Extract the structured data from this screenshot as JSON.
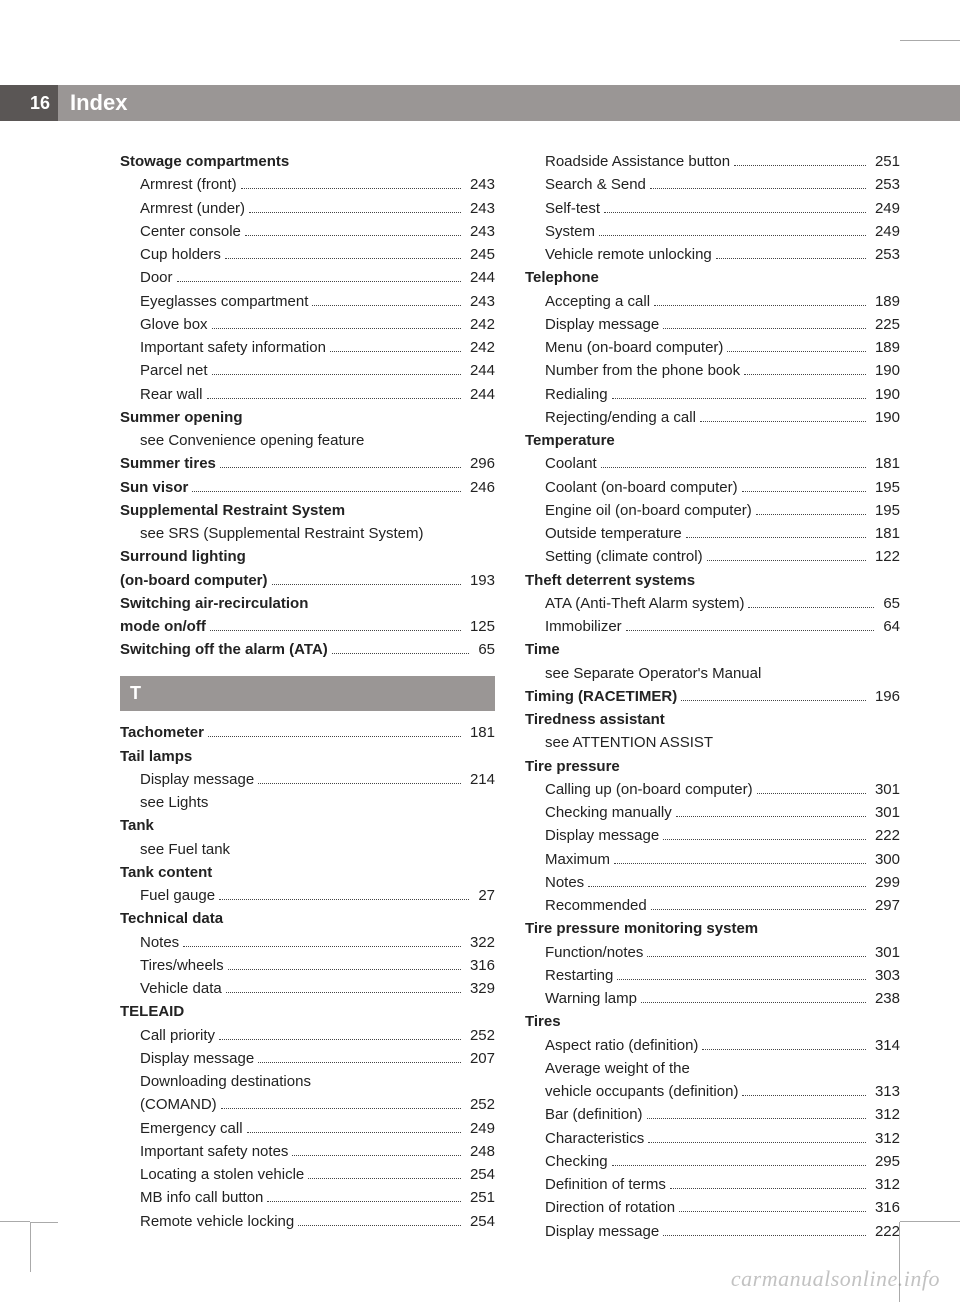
{
  "header": {
    "page_number": "16",
    "title": "Index"
  },
  "section_letter": "T",
  "watermark": "carmanualsonline.info",
  "colors": {
    "header_bar": "#9a9695",
    "page_num_bg": "#5a5655",
    "text": "#222222",
    "bg": "#ffffff"
  },
  "left_col": [
    {
      "type": "heading",
      "text": "Stowage compartments"
    },
    {
      "type": "sub",
      "text": "Armrest (front)",
      "page": "243"
    },
    {
      "type": "sub",
      "text": "Armrest (under)",
      "page": "243"
    },
    {
      "type": "sub",
      "text": "Center console",
      "page": "243"
    },
    {
      "type": "sub",
      "text": "Cup holders",
      "page": "245"
    },
    {
      "type": "sub",
      "text": "Door",
      "page": "244"
    },
    {
      "type": "sub",
      "text": "Eyeglasses compartment",
      "page": "243"
    },
    {
      "type": "sub",
      "text": "Glove box",
      "page": "242"
    },
    {
      "type": "sub",
      "text": "Important safety information",
      "page": "242"
    },
    {
      "type": "sub",
      "text": "Parcel net",
      "page": "244"
    },
    {
      "type": "sub",
      "text": "Rear wall",
      "page": "244"
    },
    {
      "type": "heading",
      "text": "Summer opening"
    },
    {
      "type": "see",
      "text": "see Convenience opening feature"
    },
    {
      "type": "heading_pg",
      "text": "Summer tires",
      "page": "296"
    },
    {
      "type": "heading_pg",
      "text": "Sun visor",
      "page": "246"
    },
    {
      "type": "heading",
      "text": "Supplemental Restraint System"
    },
    {
      "type": "see",
      "text": "see SRS (Supplemental Restraint System)"
    },
    {
      "type": "heading_pg",
      "text": "Surround lighting (on-board computer)",
      "page": "193"
    },
    {
      "type": "heading_pg",
      "text": "Switching air-recirculation mode on/off",
      "page": "125"
    },
    {
      "type": "heading_pg",
      "text": "Switching off the alarm (ATA)",
      "page": "65"
    },
    {
      "type": "letter"
    },
    {
      "type": "heading_pg",
      "text": "Tachometer",
      "page": "181"
    },
    {
      "type": "heading",
      "text": "Tail lamps"
    },
    {
      "type": "sub",
      "text": "Display message",
      "page": "214"
    },
    {
      "type": "see",
      "text": "see Lights"
    },
    {
      "type": "heading",
      "text": "Tank"
    },
    {
      "type": "see",
      "text": "see Fuel tank"
    },
    {
      "type": "heading",
      "text": "Tank content"
    },
    {
      "type": "sub",
      "text": "Fuel gauge",
      "page": "27"
    },
    {
      "type": "heading",
      "text": "Technical data"
    },
    {
      "type": "sub",
      "text": "Notes",
      "page": "322"
    },
    {
      "type": "sub",
      "text": "Tires/wheels",
      "page": "316"
    },
    {
      "type": "sub",
      "text": "Vehicle data",
      "page": "329"
    },
    {
      "type": "heading",
      "text": "TELEAID"
    },
    {
      "type": "sub",
      "text": "Call priority",
      "page": "252"
    },
    {
      "type": "sub",
      "text": "Display message",
      "page": "207"
    },
    {
      "type": "sub_multi",
      "text": "Downloading destinations (COMAND)",
      "page": "252"
    },
    {
      "type": "sub",
      "text": "Emergency call",
      "page": "249"
    },
    {
      "type": "sub",
      "text": "Important safety notes",
      "page": "248"
    },
    {
      "type": "sub",
      "text": "Locating a stolen vehicle",
      "page": "254"
    },
    {
      "type": "sub",
      "text": "MB info call button",
      "page": "251"
    },
    {
      "type": "sub",
      "text": "Remote vehicle locking",
      "page": "254"
    }
  ],
  "right_col": [
    {
      "type": "sub",
      "text": "Roadside Assistance button",
      "page": "251"
    },
    {
      "type": "sub",
      "text": "Search & Send",
      "page": "253"
    },
    {
      "type": "sub",
      "text": "Self-test",
      "page": "249"
    },
    {
      "type": "sub",
      "text": "System",
      "page": "249"
    },
    {
      "type": "sub",
      "text": "Vehicle remote unlocking",
      "page": "253"
    },
    {
      "type": "heading",
      "text": "Telephone"
    },
    {
      "type": "sub",
      "text": "Accepting a call",
      "page": "189"
    },
    {
      "type": "sub",
      "text": "Display message",
      "page": "225"
    },
    {
      "type": "sub",
      "text": "Menu (on-board computer)",
      "page": "189"
    },
    {
      "type": "sub",
      "text": "Number from the phone book",
      "page": "190"
    },
    {
      "type": "sub",
      "text": "Redialing",
      "page": "190"
    },
    {
      "type": "sub",
      "text": "Rejecting/ending a call",
      "page": "190"
    },
    {
      "type": "heading",
      "text": "Temperature"
    },
    {
      "type": "sub",
      "text": "Coolant",
      "page": "181"
    },
    {
      "type": "sub",
      "text": "Coolant (on-board computer)",
      "page": "195"
    },
    {
      "type": "sub",
      "text": "Engine oil (on-board computer)",
      "page": "195"
    },
    {
      "type": "sub",
      "text": "Outside temperature",
      "page": "181"
    },
    {
      "type": "sub",
      "text": "Setting (climate control)",
      "page": "122"
    },
    {
      "type": "heading",
      "text": "Theft deterrent systems"
    },
    {
      "type": "sub",
      "text": "ATA (Anti-Theft Alarm system)",
      "page": "65"
    },
    {
      "type": "sub",
      "text": "Immobilizer",
      "page": "64"
    },
    {
      "type": "heading",
      "text": "Time"
    },
    {
      "type": "see",
      "text": "see Separate Operator's Manual"
    },
    {
      "type": "heading_pg",
      "text": "Timing (RACETIMER)",
      "page": "196"
    },
    {
      "type": "heading",
      "text": "Tiredness assistant"
    },
    {
      "type": "see",
      "text": "see ATTENTION ASSIST"
    },
    {
      "type": "heading",
      "text": "Tire pressure"
    },
    {
      "type": "sub",
      "text": "Calling up (on-board computer)",
      "page": "301",
      "dots_style": "thin"
    },
    {
      "type": "sub",
      "text": "Checking manually",
      "page": "301"
    },
    {
      "type": "sub",
      "text": "Display message",
      "page": "222"
    },
    {
      "type": "sub",
      "text": "Maximum",
      "page": "300"
    },
    {
      "type": "sub",
      "text": "Notes",
      "page": "299"
    },
    {
      "type": "sub",
      "text": "Recommended",
      "page": "297"
    },
    {
      "type": "heading",
      "text": "Tire pressure monitoring system"
    },
    {
      "type": "sub",
      "text": "Function/notes",
      "page": "301"
    },
    {
      "type": "sub",
      "text": "Restarting",
      "page": "303"
    },
    {
      "type": "sub",
      "text": "Warning lamp",
      "page": "238"
    },
    {
      "type": "heading",
      "text": "Tires"
    },
    {
      "type": "sub",
      "text": "Aspect ratio (definition)",
      "page": "314"
    },
    {
      "type": "sub_multi",
      "text": "Average weight of the vehicle occupants (definition)",
      "page": "313"
    },
    {
      "type": "sub",
      "text": "Bar (definition)",
      "page": "312"
    },
    {
      "type": "sub",
      "text": "Characteristics",
      "page": "312"
    },
    {
      "type": "sub",
      "text": "Checking",
      "page": "295"
    },
    {
      "type": "sub",
      "text": "Definition of terms",
      "page": "312"
    },
    {
      "type": "sub",
      "text": "Direction of rotation",
      "page": "316"
    },
    {
      "type": "sub",
      "text": "Display message",
      "page": "222"
    }
  ]
}
